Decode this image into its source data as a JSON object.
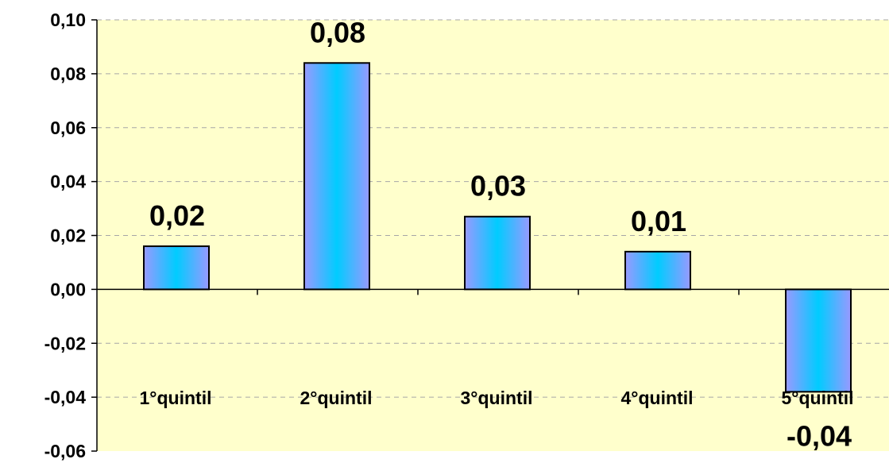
{
  "chart_data": {
    "type": "bar",
    "categories": [
      "1°quintil",
      "2°quintil",
      "3°quintil",
      "4°quintil",
      "5°quintil"
    ],
    "values": [
      0.016,
      0.084,
      0.027,
      0.014,
      -0.038
    ],
    "data_labels": [
      "0,02",
      "0,08",
      "0,03",
      "0,01",
      "-0,04"
    ],
    "ylim": [
      -0.06,
      0.1
    ],
    "yticks": [
      0.1,
      0.08,
      0.06,
      0.04,
      0.02,
      0.0,
      -0.02,
      -0.04,
      -0.06
    ],
    "ytick_labels": [
      "0,10",
      "0,08",
      "0,06",
      "0,04",
      "0,02",
      "0,00",
      "-0,02",
      "-0,04",
      "-0,06"
    ],
    "grid": true,
    "plot_background": "#FFFFCC",
    "bar_gradient": [
      "#9999FF",
      "#00CCFF"
    ]
  }
}
